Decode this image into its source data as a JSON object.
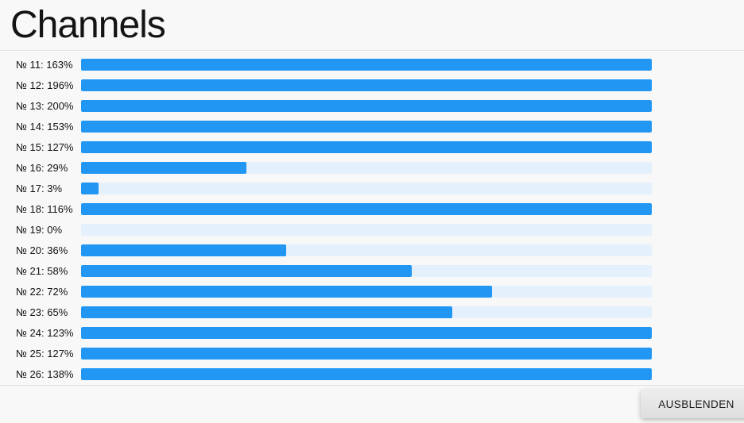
{
  "title": "Channels",
  "footer": {
    "hide_button_label": "AUSBLENDEN"
  },
  "colors": {
    "page_background": "#f8f8f8",
    "bar_fill": "#2196f3",
    "bar_track": "#e4f0fc",
    "divider": "#e2e2e2",
    "text": "#111111",
    "button_background": "#e6e6e6"
  },
  "channels": [
    {
      "label": "№ 11: 163%",
      "percent": 163
    },
    {
      "label": "№ 12: 196%",
      "percent": 196
    },
    {
      "label": "№ 13: 200%",
      "percent": 200
    },
    {
      "label": "№ 14: 153%",
      "percent": 153
    },
    {
      "label": "№ 15: 127%",
      "percent": 127
    },
    {
      "label": "№ 16: 29%",
      "percent": 29
    },
    {
      "label": "№ 17: 3%",
      "percent": 3
    },
    {
      "label": "№ 18: 116%",
      "percent": 116
    },
    {
      "label": "№ 19: 0%",
      "percent": 0
    },
    {
      "label": "№ 20: 36%",
      "percent": 36
    },
    {
      "label": "№ 21: 58%",
      "percent": 58
    },
    {
      "label": "№ 22: 72%",
      "percent": 72
    },
    {
      "label": "№ 23: 65%",
      "percent": 65
    },
    {
      "label": "№ 24: 123%",
      "percent": 123
    },
    {
      "label": "№ 25: 127%",
      "percent": 127
    },
    {
      "label": "№ 26: 138%",
      "percent": 138
    }
  ]
}
